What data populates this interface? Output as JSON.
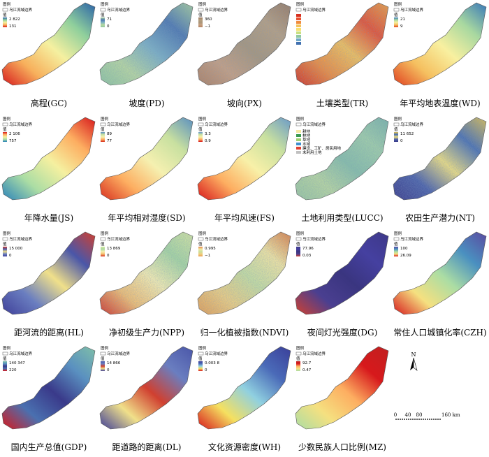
{
  "legend_labels": {
    "title": "图例",
    "boundary": "乌江流域边界",
    "value": "值"
  },
  "panels": [
    {
      "caption": "高程(GC)",
      "max": "2 822",
      "min": "131"
    },
    {
      "caption": "坡度(PD)",
      "max": "71",
      "min": "0"
    },
    {
      "caption": "坡向(PX)",
      "max": "360",
      "min": "−1"
    },
    {
      "caption": "土壤类型(TR)"
    },
    {
      "caption": "年平均地表温度(WD)",
      "max": "21",
      "min": "9"
    },
    {
      "caption": "年降水量(JS)",
      "max": "2 106",
      "min": "757"
    },
    {
      "caption": "年平均相对湿度(SD)",
      "max": "89",
      "min": "77"
    },
    {
      "caption": "年平均风速(FS)",
      "max": "3.3",
      "min": "0.9"
    },
    {
      "caption": "土地利用类型(LUCC)",
      "classes": [
        "耕地",
        "林地",
        "草地",
        "水域",
        "建设、工矿、居民用地",
        "未利用土地"
      ]
    },
    {
      "caption": "农田生产潜力(NT)",
      "max": "11 652",
      "min": "0"
    },
    {
      "caption": "距河流的距离(HL)",
      "max": "15 000",
      "min": "0"
    },
    {
      "caption": "净初级生产力(NPP)",
      "max": "13 869",
      "min": "0"
    },
    {
      "caption": "归一化植被指数(NDVI)",
      "max": "0.995",
      "min": "−1"
    },
    {
      "caption": "夜间灯光强度(DG)",
      "max": "77.96",
      "min": "0.03"
    },
    {
      "caption": "常住人口城镇化率(CZH)",
      "max": "100",
      "min": "26.09"
    },
    {
      "caption": "国内生产总值(GDP)",
      "max": "140 347",
      "min": "220"
    },
    {
      "caption": "距道路的距离(DL)",
      "max": "14 866",
      "min": "0"
    },
    {
      "caption": "文化资源密度(WH)",
      "max": "0.003 8",
      "min": "0"
    },
    {
      "caption": "少数民族人口比例(MZ)",
      "max": "92.7",
      "min": "0.47"
    }
  ],
  "north": "N",
  "scale": {
    "labels": [
      "0",
      "40",
      "80",
      "160 km"
    ]
  }
}
